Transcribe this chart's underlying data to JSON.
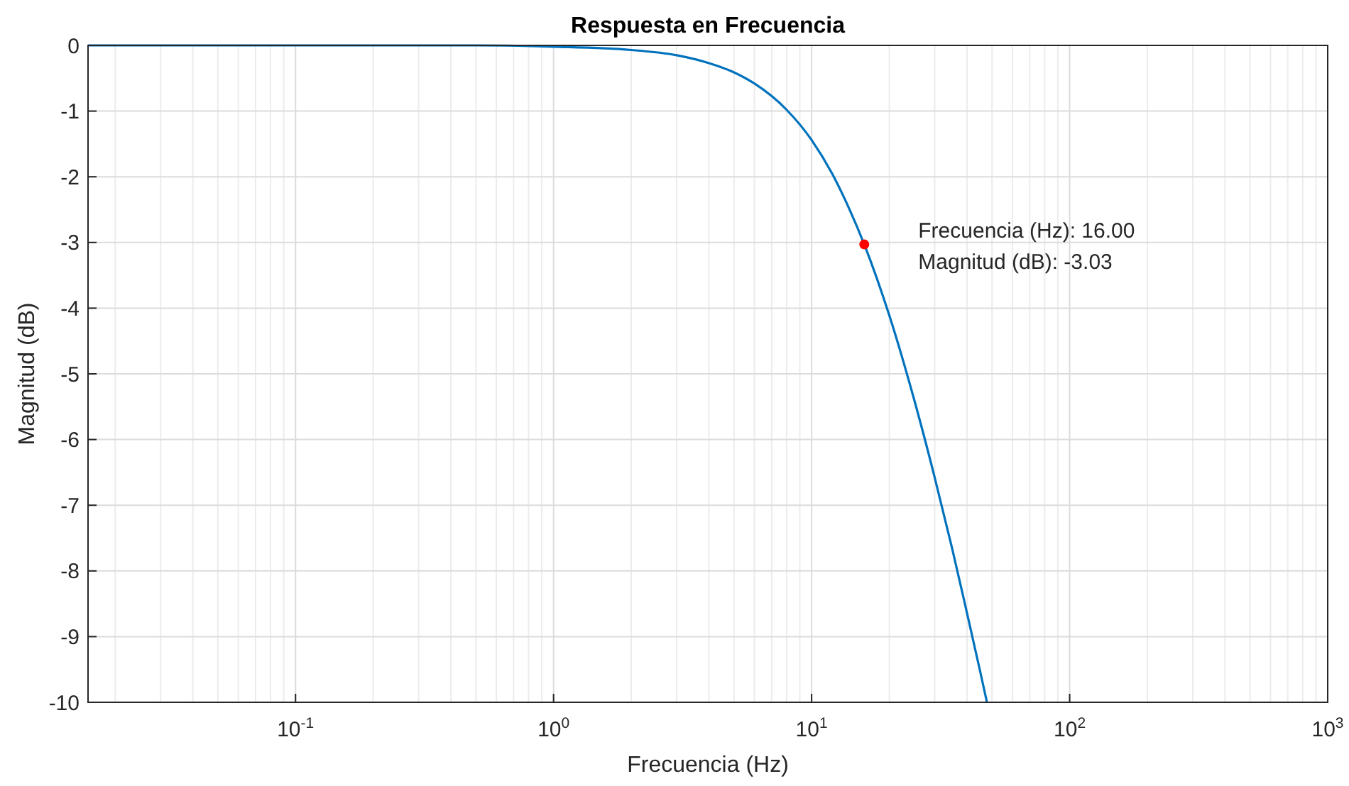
{
  "chart_data": {
    "type": "line",
    "title": "Respuesta en Frecuencia",
    "xlabel": "Frecuencia (Hz)",
    "ylabel": "Magnitud (dB)",
    "log": "x",
    "grid": true,
    "xlim": [
      0.0157,
      1000
    ],
    "ylim": [
      -10,
      0
    ],
    "xticks": [
      {
        "value": 0.1,
        "label": "10$^{-1}$"
      },
      {
        "value": 1,
        "label": "10$^{0}$"
      },
      {
        "value": 10,
        "label": "10$^{1}$"
      },
      {
        "value": 100,
        "label": "10$^{2}$"
      },
      {
        "value": 1000,
        "label": "10$^{3}$"
      }
    ],
    "yticks": [
      -10,
      -9,
      -8,
      -7,
      -6,
      -5,
      -4,
      -3,
      -2,
      -1,
      0
    ],
    "series": [
      {
        "type": "line",
        "color": "#0072bd",
        "x": [
          0.0157,
          0.1,
          0.5,
          1,
          2,
          3,
          4,
          5,
          6,
          8,
          10,
          12,
          14,
          16,
          20,
          25,
          30,
          35,
          40,
          45,
          47.8
        ],
        "values": [
          0,
          0,
          0,
          -0.02,
          -0.07,
          -0.15,
          -0.27,
          -0.41,
          -0.58,
          -0.98,
          -1.44,
          -1.95,
          -2.49,
          -3.03,
          -4.11,
          -5.4,
          -6.58,
          -7.65,
          -8.64,
          -9.53,
          -10
        ]
      },
      {
        "type": "scatter",
        "color": "#ff0000",
        "marker": "circle",
        "x": [
          16
        ],
        "values": [
          -3.03
        ]
      }
    ],
    "annotations": [
      {
        "text": "Frecuencia (Hz): 16.00\nMagnitud (dB): -3.03",
        "x": 16,
        "y": -3.03
      }
    ]
  }
}
